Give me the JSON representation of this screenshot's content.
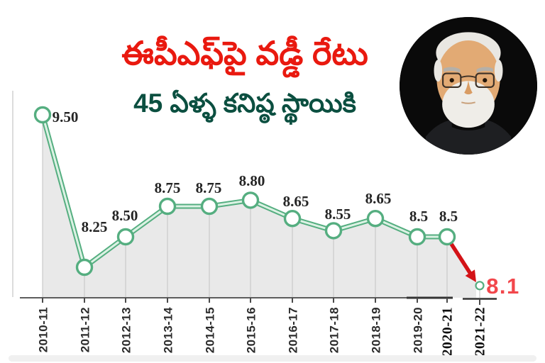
{
  "header": {
    "title_line1": "ఈపీఎఫ్‌పై వడ్డీ రేటు",
    "title_line2": "45 ఏళ్ళ కనిష్ఠ స్థాయికి"
  },
  "icons": {
    "portrait": "modi-portrait-photo"
  },
  "colors": {
    "headline_red": "#e9190f",
    "headline_green": "#0b4f40",
    "line_green": "#55ae80",
    "line_core": "#dcf2e4",
    "area_gray": "#e9e9e9",
    "grid_gray": "#c2c2c2",
    "axis_gray": "#5d5d5d",
    "axis_dark": "#333333",
    "label_dark": "#252525",
    "highlight_red": "#f2474c",
    "arrow_red": "#d31317"
  },
  "chart_data": {
    "type": "line",
    "title": "",
    "xlabel": "",
    "ylabel": "",
    "categories": [
      "2010-11",
      "2011-12",
      "2012-13",
      "2013-14",
      "2014-15",
      "2015-16",
      "2016-17",
      "2017-18",
      "2018-19",
      "2019-20",
      "2020-21",
      "2021-22"
    ],
    "values": [
      9.5,
      8.25,
      8.5,
      8.75,
      8.75,
      8.8,
      8.65,
      8.55,
      8.65,
      8.5,
      8.5,
      8.1
    ],
    "point_labels": [
      "9.50",
      "8.25",
      "8.50",
      "8.75",
      "8.75",
      "8.80",
      "8.65",
      "8.55",
      "8.65",
      "8.5",
      "8.5",
      "8.1"
    ],
    "highlight_index": 11,
    "highlight_label": "8.1",
    "ylim": [
      8.0,
      9.6
    ],
    "area_fill": true,
    "grid": "vertical",
    "legend": "none",
    "annotation": "red arrow showing drop from 8.5 in 2020-21 to 8.1 in 2021-22"
  }
}
